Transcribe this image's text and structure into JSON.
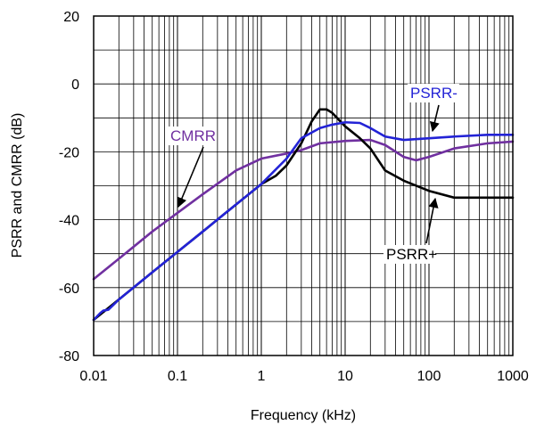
{
  "chart_data": {
    "type": "line",
    "xlabel": "Frequency (kHz)",
    "ylabel": "PSRR and CMRR (dB)",
    "x_scale": "log",
    "xlim": [
      0.01,
      1000
    ],
    "ylim": [
      -80,
      20
    ],
    "x_ticks": [
      "0.01",
      "0.1",
      "1",
      "10",
      "100",
      "1000"
    ],
    "y_ticks": [
      "-80",
      "-60",
      "-40",
      "-20",
      "0",
      "20"
    ],
    "grid": true,
    "legend": "none",
    "series": [
      {
        "name": "PSRR+",
        "color": "#000000",
        "points": [
          [
            0.01,
            -69.5
          ],
          [
            0.02,
            -63.5
          ],
          [
            0.05,
            -55.5
          ],
          [
            0.1,
            -49.5
          ],
          [
            0.2,
            -43.5
          ],
          [
            0.5,
            -35.5
          ],
          [
            1,
            -29.5
          ],
          [
            1.5,
            -27
          ],
          [
            2,
            -24
          ],
          [
            3,
            -17.5
          ],
          [
            4,
            -11
          ],
          [
            5,
            -7.5
          ],
          [
            6,
            -7.5
          ],
          [
            7,
            -8.5
          ],
          [
            10,
            -12.5
          ],
          [
            15,
            -16
          ],
          [
            20,
            -19
          ],
          [
            30,
            -25.5
          ],
          [
            50,
            -28.5
          ],
          [
            100,
            -31.5
          ],
          [
            200,
            -33.5
          ],
          [
            500,
            -33.5
          ],
          [
            1000,
            -33.5
          ]
        ]
      },
      {
        "name": "PSRR-",
        "color": "#2323d6",
        "points": [
          [
            0.01,
            -69.5
          ],
          [
            0.012,
            -67.5
          ],
          [
            0.013,
            -66.8
          ],
          [
            0.015,
            -66.5
          ],
          [
            0.02,
            -63.5
          ],
          [
            0.05,
            -55.5
          ],
          [
            0.1,
            -49.5
          ],
          [
            0.2,
            -43.5
          ],
          [
            0.5,
            -35.5
          ],
          [
            1,
            -29.5
          ],
          [
            2,
            -22
          ],
          [
            3,
            -16
          ],
          [
            5,
            -13
          ],
          [
            7,
            -12
          ],
          [
            10,
            -11.3
          ],
          [
            15,
            -11.5
          ],
          [
            20,
            -13
          ],
          [
            30,
            -15.5
          ],
          [
            50,
            -16.5
          ],
          [
            100,
            -16
          ],
          [
            200,
            -15.5
          ],
          [
            500,
            -15
          ],
          [
            1000,
            -15
          ]
        ]
      },
      {
        "name": "CMRR",
        "color": "#7030a0",
        "points": [
          [
            0.01,
            -57.5
          ],
          [
            0.02,
            -51.5
          ],
          [
            0.05,
            -43.5
          ],
          [
            0.1,
            -38
          ],
          [
            0.2,
            -32.5
          ],
          [
            0.5,
            -25.5
          ],
          [
            1,
            -22
          ],
          [
            2,
            -20.5
          ],
          [
            3,
            -19.5
          ],
          [
            5,
            -17.5
          ],
          [
            10,
            -16.8
          ],
          [
            20,
            -16.5
          ],
          [
            30,
            -18
          ],
          [
            50,
            -21.5
          ],
          [
            70,
            -22.5
          ],
          [
            100,
            -21.5
          ],
          [
            200,
            -19
          ],
          [
            500,
            -17.5
          ],
          [
            1000,
            -17
          ]
        ]
      }
    ],
    "annotations": [
      {
        "text": "PSRR-",
        "color": "#2323d6"
      },
      {
        "text": "CMRR",
        "color": "#7030a0"
      },
      {
        "text": "PSRR+",
        "color": "#000000"
      }
    ]
  }
}
